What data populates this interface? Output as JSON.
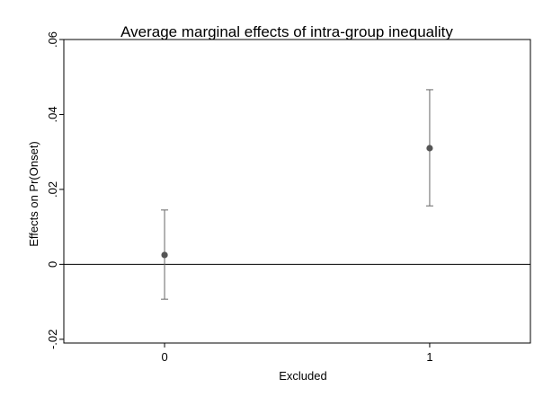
{
  "chart_data": {
    "type": "scatter",
    "title": "Average marginal effects of intra-group inequality",
    "xlabel": "Excluded",
    "ylabel": "Effects on Pr(Onset)",
    "x_ticks": [
      {
        "value": 0,
        "label": "0"
      },
      {
        "value": 1,
        "label": "1"
      }
    ],
    "y_ticks": [
      {
        "value": -0.02,
        "label": "-.02"
      },
      {
        "value": 0,
        "label": "0"
      },
      {
        "value": 0.02,
        "label": ".02"
      },
      {
        "value": 0.04,
        "label": ".04"
      },
      {
        "value": 0.06,
        "label": ".06"
      }
    ],
    "xlim": [
      -0.38,
      1.38
    ],
    "ylim": [
      -0.021,
      0.06
    ],
    "reference_line_y": 0,
    "grid": false,
    "points": [
      {
        "x": 0,
        "y": 0.0025,
        "ci_low": -0.0093,
        "ci_high": 0.0145
      },
      {
        "x": 1,
        "y": 0.031,
        "ci_low": 0.0156,
        "ci_high": 0.0466
      }
    ],
    "colors": {
      "marker": "#555555",
      "ci": "#666666",
      "axis": "#000000",
      "reference_line": "#000000"
    }
  }
}
